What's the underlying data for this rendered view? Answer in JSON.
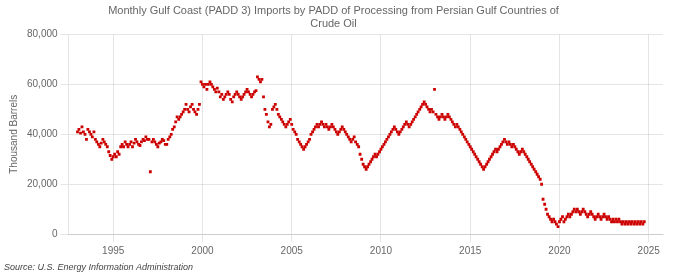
{
  "chart_data": {
    "type": "scatter",
    "title": "Monthly Gulf Coast (PADD 3) Imports by PADD of Processing from Persian Gulf Countries of\nCrude Oil",
    "ylabel": "Thousand Barrels",
    "source": "Source: U.S. Energy Information Administration",
    "color": "#cc0000",
    "marker": "square",
    "grid": true,
    "xlim": [
      1992.5,
      2025.8
    ],
    "ylim": [
      0,
      80000
    ],
    "xticks": [
      1995,
      2000,
      2005,
      2010,
      2015,
      2020,
      2025
    ],
    "yticks": [
      0,
      {
        "value": 20000,
        "label": "20,000"
      },
      {
        "value": 40000,
        "label": "40,000"
      },
      {
        "value": 60000,
        "label": "60,000"
      },
      {
        "value": 80000,
        "label": "80,000"
      }
    ],
    "x": [
      1993.0,
      1993.08,
      1993.17,
      1993.25,
      1993.33,
      1993.42,
      1993.5,
      1993.58,
      1993.67,
      1993.75,
      1993.83,
      1993.92,
      1994.0,
      1994.08,
      1994.17,
      1994.25,
      1994.33,
      1994.42,
      1994.5,
      1994.58,
      1994.67,
      1994.75,
      1994.83,
      1994.92,
      1995.0,
      1995.08,
      1995.17,
      1995.25,
      1995.33,
      1995.42,
      1995.5,
      1995.58,
      1995.67,
      1995.75,
      1995.83,
      1995.92,
      1996.0,
      1996.08,
      1996.17,
      1996.25,
      1996.33,
      1996.42,
      1996.5,
      1996.58,
      1996.67,
      1996.75,
      1996.83,
      1996.92,
      1997.0,
      1997.08,
      1997.17,
      1997.25,
      1997.33,
      1997.42,
      1997.5,
      1997.58,
      1997.67,
      1997.75,
      1997.83,
      1997.92,
      1998.0,
      1998.08,
      1998.17,
      1998.25,
      1998.33,
      1998.42,
      1998.5,
      1998.58,
      1998.67,
      1998.75,
      1998.83,
      1998.92,
      1999.0,
      1999.08,
      1999.17,
      1999.25,
      1999.33,
      1999.42,
      1999.5,
      1999.58,
      1999.67,
      1999.75,
      1999.83,
      1999.92,
      2000.0,
      2000.08,
      2000.17,
      2000.25,
      2000.33,
      2000.42,
      2000.5,
      2000.58,
      2000.67,
      2000.75,
      2000.83,
      2000.92,
      2001.0,
      2001.08,
      2001.17,
      2001.25,
      2001.33,
      2001.42,
      2001.5,
      2001.58,
      2001.67,
      2001.75,
      2001.83,
      2001.92,
      2002.0,
      2002.08,
      2002.17,
      2002.25,
      2002.33,
      2002.42,
      2002.5,
      2002.58,
      2002.67,
      2002.75,
      2002.83,
      2002.92,
      2003.0,
      2003.08,
      2003.17,
      2003.25,
      2003.33,
      2003.42,
      2003.5,
      2003.58,
      2003.67,
      2003.75,
      2003.83,
      2003.92,
      2004.0,
      2004.08,
      2004.17,
      2004.25,
      2004.33,
      2004.42,
      2004.5,
      2004.58,
      2004.67,
      2004.75,
      2004.83,
      2004.92,
      2005.0,
      2005.08,
      2005.17,
      2005.25,
      2005.33,
      2005.42,
      2005.5,
      2005.58,
      2005.67,
      2005.75,
      2005.83,
      2005.92,
      2006.0,
      2006.08,
      2006.17,
      2006.25,
      2006.33,
      2006.42,
      2006.5,
      2006.58,
      2006.67,
      2006.75,
      2006.83,
      2006.92,
      2007.0,
      2007.08,
      2007.17,
      2007.25,
      2007.33,
      2007.42,
      2007.5,
      2007.58,
      2007.67,
      2007.75,
      2007.83,
      2007.92,
      2008.0,
      2008.08,
      2008.17,
      2008.25,
      2008.33,
      2008.42,
      2008.5,
      2008.58,
      2008.67,
      2008.75,
      2008.83,
      2008.92,
      2009.0,
      2009.08,
      2009.17,
      2009.25,
      2009.33,
      2009.42,
      2009.5,
      2009.58,
      2009.67,
      2009.75,
      2009.83,
      2009.92,
      2010.0,
      2010.08,
      2010.17,
      2010.25,
      2010.33,
      2010.42,
      2010.5,
      2010.58,
      2010.67,
      2010.75,
      2010.83,
      2010.92,
      2011.0,
      2011.08,
      2011.17,
      2011.25,
      2011.33,
      2011.42,
      2011.5,
      2011.58,
      2011.67,
      2011.75,
      2011.83,
      2011.92,
      2012.0,
      2012.08,
      2012.17,
      2012.25,
      2012.33,
      2012.42,
      2012.5,
      2012.58,
      2012.67,
      2012.75,
      2012.83,
      2012.92,
      2013.0,
      2013.08,
      2013.17,
      2013.25,
      2013.33,
      2013.42,
      2013.5,
      2013.58,
      2013.67,
      2013.75,
      2013.83,
      2013.92,
      2014.0,
      2014.08,
      2014.17,
      2014.25,
      2014.33,
      2014.42,
      2014.5,
      2014.58,
      2014.67,
      2014.75,
      2014.83,
      2014.92,
      2015.0,
      2015.08,
      2015.17,
      2015.25,
      2015.33,
      2015.42,
      2015.5,
      2015.58,
      2015.67,
      2015.75,
      2015.83,
      2015.92,
      2016.0,
      2016.08,
      2016.17,
      2016.25,
      2016.33,
      2016.42,
      2016.5,
      2016.58,
      2016.67,
      2016.75,
      2016.83,
      2016.92,
      2017.0,
      2017.08,
      2017.17,
      2017.25,
      2017.33,
      2017.42,
      2017.5,
      2017.58,
      2017.67,
      2017.75,
      2017.83,
      2017.92,
      2018.0,
      2018.08,
      2018.17,
      2018.25,
      2018.33,
      2018.42,
      2018.5,
      2018.58,
      2018.67,
      2018.75,
      2018.83,
      2018.92,
      2019.0,
      2019.08,
      2019.17,
      2019.25,
      2019.33,
      2019.42,
      2019.5,
      2019.58,
      2019.67,
      2019.75,
      2019.83,
      2019.92,
      2020.0,
      2020.08,
      2020.17,
      2020.25,
      2020.33,
      2020.42,
      2020.5,
      2020.58,
      2020.67,
      2020.75,
      2020.83,
      2020.92,
      2021.0,
      2021.08,
      2021.17,
      2021.25,
      2021.33,
      2021.42,
      2021.5,
      2021.58,
      2021.67,
      2021.75,
      2021.83,
      2021.92,
      2022.0,
      2022.08,
      2022.17,
      2022.25,
      2022.33,
      2022.42,
      2022.5,
      2022.58,
      2022.67,
      2022.75,
      2022.83,
      2022.92,
      2023.0,
      2023.08,
      2023.17,
      2023.25,
      2023.33,
      2023.42,
      2023.5,
      2023.58,
      2023.67,
      2023.75,
      2023.83,
      2023.92,
      2024.0,
      2024.08,
      2024.17,
      2024.25,
      2024.33,
      2024.42,
      2024.5,
      2024.58,
      2024.67,
      2024.75
    ],
    "values": [
      41000,
      42000,
      40500,
      43000,
      41000,
      40000,
      38000,
      42000,
      41000,
      40000,
      39000,
      41000,
      38000,
      37000,
      36000,
      35000,
      36500,
      38000,
      37000,
      36000,
      35000,
      33000,
      31500,
      30000,
      31000,
      32000,
      31000,
      33000,
      32000,
      35000,
      36000,
      35000,
      37000,
      36000,
      35000,
      36000,
      37000,
      35000,
      36500,
      38000,
      37000,
      36000,
      35500,
      37000,
      38000,
      37500,
      39000,
      38000,
      38000,
      25000,
      37000,
      38000,
      37000,
      36000,
      35000,
      36500,
      37000,
      38000,
      37500,
      36000,
      36000,
      38000,
      39000,
      40000,
      42000,
      43000,
      45000,
      47000,
      46000,
      47000,
      48000,
      49000,
      50000,
      52000,
      50000,
      49000,
      51000,
      52000,
      50000,
      49000,
      48000,
      50000,
      52000,
      61000,
      60000,
      59000,
      60000,
      58000,
      60000,
      61000,
      60000,
      59000,
      58000,
      57000,
      58500,
      57000,
      55000,
      56000,
      54000,
      55000,
      56000,
      57000,
      56000,
      54000,
      53000,
      55000,
      56000,
      57000,
      56000,
      55000,
      54000,
      55000,
      56000,
      57000,
      58000,
      57000,
      56000,
      55000,
      56000,
      57000,
      57500,
      63000,
      62000,
      61000,
      62000,
      55000,
      50000,
      48000,
      45000,
      43000,
      44000,
      50000,
      51000,
      52000,
      50000,
      48000,
      47000,
      46000,
      45000,
      44000,
      43000,
      44000,
      45000,
      46000,
      44000,
      42000,
      41000,
      40000,
      38000,
      37000,
      36000,
      35000,
      34000,
      35000,
      36000,
      37000,
      38000,
      40000,
      41000,
      42000,
      43000,
      44000,
      43000,
      44000,
      45000,
      44000,
      43000,
      44000,
      43000,
      42000,
      43000,
      44000,
      43000,
      42000,
      41000,
      40000,
      41000,
      42000,
      43000,
      42000,
      41000,
      40000,
      39000,
      38000,
      37000,
      38000,
      39000,
      37000,
      36000,
      35000,
      32000,
      30000,
      28000,
      27000,
      26000,
      27000,
      28000,
      29000,
      30000,
      31000,
      32000,
      31000,
      32000,
      33000,
      34000,
      35000,
      36000,
      37000,
      38000,
      39000,
      40000,
      41000,
      42000,
      43000,
      42000,
      41000,
      40000,
      41000,
      42000,
      43000,
      44000,
      45000,
      44000,
      43000,
      44000,
      45000,
      46000,
      47000,
      48000,
      49000,
      50000,
      51000,
      52000,
      53000,
      52000,
      51000,
      50000,
      49000,
      50000,
      49000,
      58000,
      48000,
      47000,
      46000,
      47000,
      48000,
      47000,
      46000,
      47000,
      48000,
      47000,
      46000,
      45000,
      44000,
      43000,
      44000,
      43000,
      42000,
      41000,
      40000,
      39000,
      38000,
      37000,
      36000,
      35000,
      34000,
      33000,
      32000,
      31000,
      30000,
      29000,
      28000,
      27000,
      26000,
      27000,
      28000,
      29000,
      30000,
      31000,
      32000,
      33000,
      34000,
      33000,
      34000,
      35000,
      36000,
      37000,
      38000,
      37000,
      36000,
      37000,
      36000,
      35000,
      36000,
      35000,
      34000,
      33000,
      32000,
      33000,
      34000,
      33000,
      32000,
      31000,
      30000,
      29000,
      28000,
      27000,
      26000,
      25000,
      24000,
      23000,
      22000,
      20000,
      14000,
      12000,
      10000,
      8000,
      7000,
      6000,
      5000,
      6000,
      5000,
      4000,
      3000,
      5000,
      6000,
      7000,
      5000,
      6000,
      7000,
      8000,
      7000,
      8000,
      9000,
      10000,
      9000,
      10000,
      9000,
      8000,
      9000,
      10000,
      9000,
      8000,
      7000,
      8000,
      9000,
      8000,
      7000,
      6000,
      7000,
      8000,
      7000,
      6000,
      7000,
      8000,
      7000,
      6000,
      7000,
      6000,
      5000,
      6000,
      5000,
      6000,
      5000,
      6000,
      5000,
      4000,
      5000,
      4000,
      5000,
      4000,
      5000,
      4000,
      5000,
      4000,
      5000,
      4000,
      5000,
      4000,
      5000,
      4000,
      5000
    ]
  }
}
